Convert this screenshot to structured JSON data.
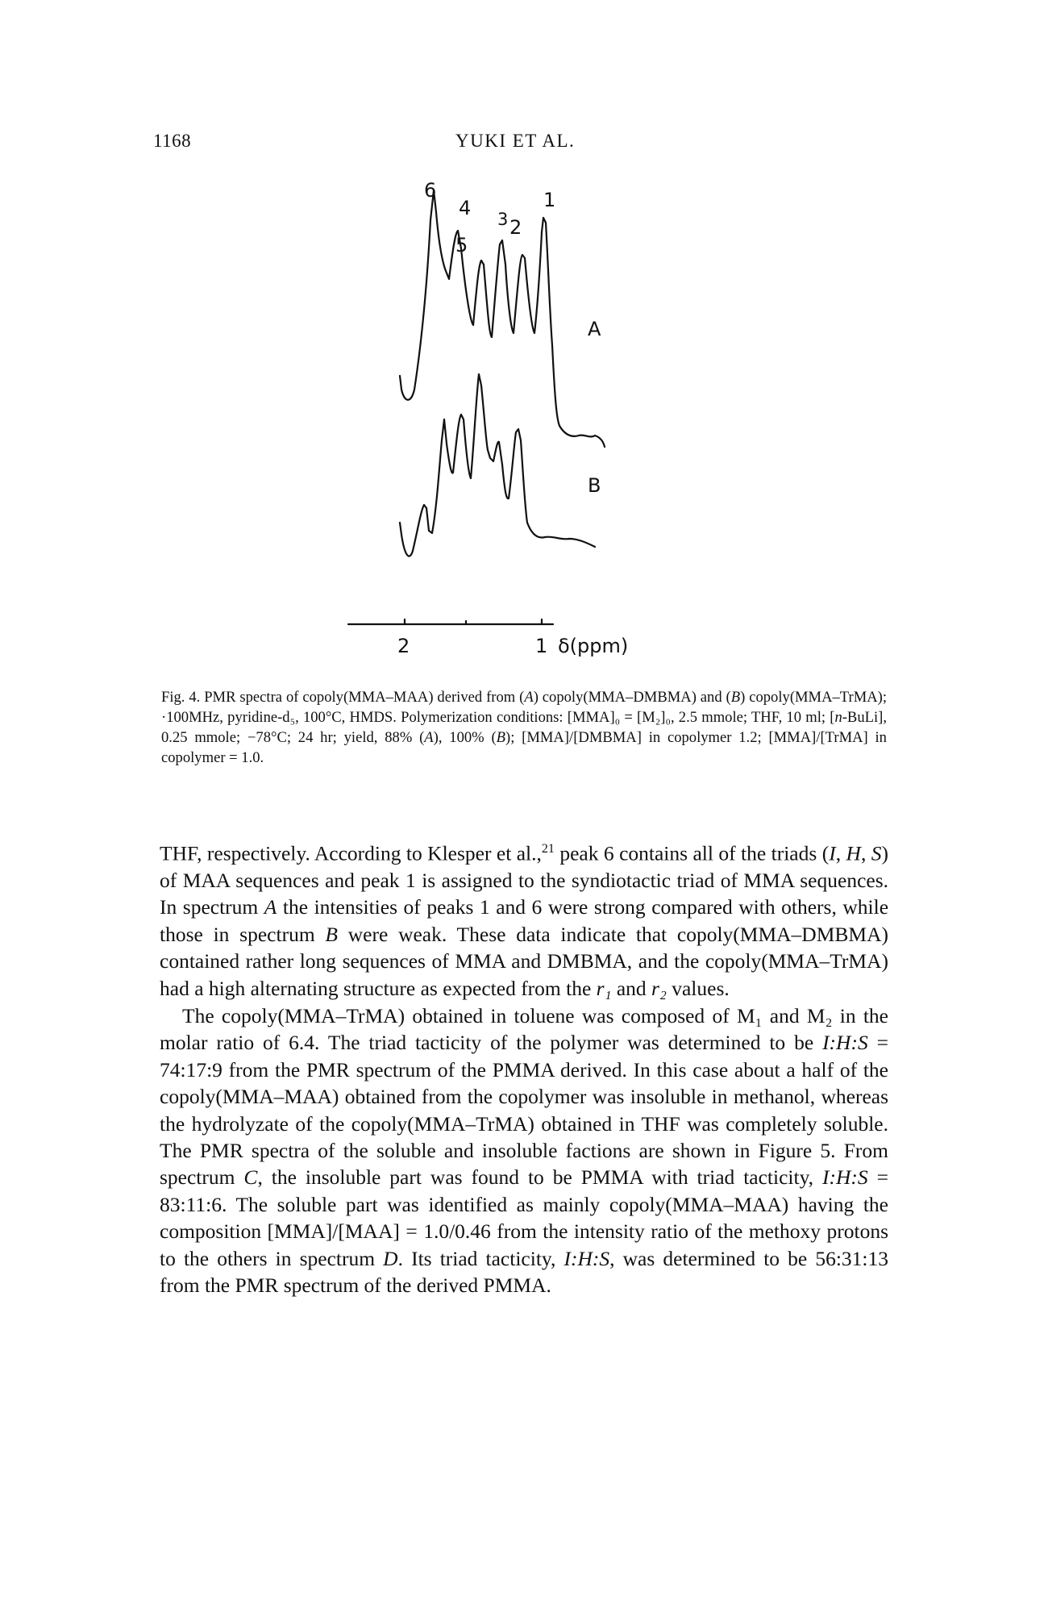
{
  "header": {
    "page_number": "1168",
    "running_head": "YUKI ET AL."
  },
  "figure": {
    "peak_labels": [
      "6",
      "5",
      "4",
      "3",
      "2",
      "1"
    ],
    "spectrum_labels": [
      "A",
      "B"
    ],
    "axis_ticks": [
      "2",
      "1"
    ],
    "axis_unit": "δ(ppm)"
  },
  "caption": {
    "fig_number": "Fig. 4.",
    "text_1": " PMR spectra of copoly(MMA–MAA) derived from (",
    "a_label": "A",
    "text_2": ") copoly(MMA–DMBMA) and (",
    "b_label": "B",
    "text_3": ") copoly(MMA–TrMA); ·100MHz, pyridine-d₅, 100°C, HMDS. Polymerization conditions: [MMA]₀ = [M₂]₀, 2.5 mmole; THF, 10 ml; [",
    "n_label": "n",
    "text_4": "-BuLi], 0.25 mmole; −78°C; 24 hr; yield, 88% (",
    "a_label_2": "A",
    "text_5": "), 100% (",
    "b_label_2": "B",
    "text_6": "); [MMA]/[DMBMA] in copolymer 1.2; [MMA]/[TrMA] in copolymer = 1.0."
  },
  "body": {
    "p1_a": "THF, respectively. According to Klesper et al.,",
    "p1_ref": "21",
    "p1_b": " peak 6 contains all of the triads (",
    "p1_I": "I",
    "p1_c": ", ",
    "p1_H": "H",
    "p1_d": ", ",
    "p1_S": "S",
    "p1_e": ") of MAA sequences and peak 1 is assigned to the syndiotactic triad of MMA sequences. In spectrum ",
    "p1_A": "A",
    "p1_f": " the intensities of peaks 1 and 6 were strong compared with others, while those in spectrum ",
    "p1_B": "B",
    "p1_g": " were weak. These data indicate that copoly(MMA–DMBMA) contained rather long sequences of MMA and DMBMA, and the copoly(MMA–TrMA) had a high alternating structure as expected from the ",
    "p1_r1": "r₁",
    "p1_h": " and ",
    "p1_r2": "r₂",
    "p1_i": " values.",
    "p2_a": "The copoly(MMA–TrMA) obtained in toluene was composed of M₁ and M₂ in the molar ratio of 6.4. The triad tacticity of the polymer was determined to be ",
    "p2_ihs1": "I:H:S",
    "p2_b": " = 74:17:9 from the PMR spectrum of the PMMA derived. In this case about a half of the copoly(MMA–MAA) obtained from the copolymer was insoluble in methanol, whereas the hydrolyzate of the copoly(MMA–TrMA) obtained in THF was completely soluble. The PMR spectra of the soluble and insoluble factions are shown in Figure 5. From spectrum ",
    "p2_C": "C",
    "p2_c": ", the insoluble part was found to be PMMA with triad tacticity, ",
    "p2_ihs2": "I:H:S",
    "p2_d": " = 83:11:6. The soluble part was identified as mainly copoly(MMA–MAA) having the composition [MMA]/[MAA] = 1.0/0.46 from the intensity ratio of the methoxy protons to the others in spectrum ",
    "p2_D": "D",
    "p2_e": ". Its triad tacticity, ",
    "p2_ihs3": "I:H:S",
    "p2_f": ", was determined to be 56:31:13 from the PMR spectrum of the derived PMMA."
  }
}
